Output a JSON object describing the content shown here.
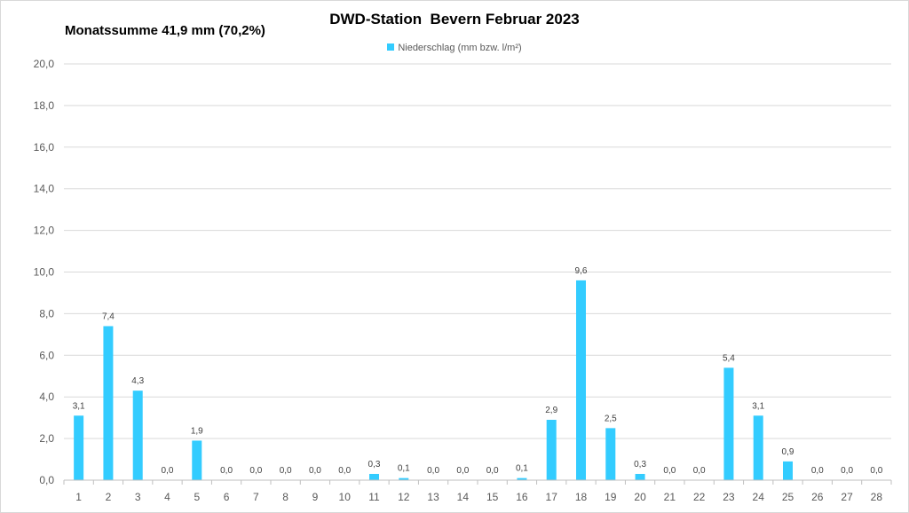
{
  "chart_data": {
    "type": "bar",
    "title": "DWD-Station  Bevern Februar 2023",
    "annotation": "Monatssumme 41,9 mm (70,2%)",
    "legend": "top-center",
    "grid": true,
    "ylim": [
      0,
      20
    ],
    "ytick_step": 2,
    "ytick_labels": [
      "0,0",
      "2,0",
      "4,0",
      "6,0",
      "8,0",
      "10,0",
      "12,0",
      "14,0",
      "16,0",
      "18,0",
      "20,0"
    ],
    "categories": [
      "1",
      "2",
      "3",
      "4",
      "5",
      "6",
      "7",
      "8",
      "9",
      "10",
      "11",
      "12",
      "13",
      "14",
      "15",
      "16",
      "17",
      "18",
      "19",
      "20",
      "21",
      "22",
      "23",
      "24",
      "25",
      "26",
      "27",
      "28"
    ],
    "series": [
      {
        "name": "Niederschlag (mm bzw. l/m²)",
        "color": "#33CCFF",
        "values": [
          3.1,
          7.4,
          4.3,
          0.0,
          1.9,
          0.0,
          0.0,
          0.0,
          0.0,
          0.0,
          0.3,
          0.1,
          0.0,
          0.0,
          0.0,
          0.1,
          2.9,
          9.6,
          2.5,
          0.3,
          0.0,
          0.0,
          5.4,
          3.1,
          0.9,
          0.0,
          0.0,
          0.0
        ],
        "labels": [
          "3,1",
          "7,4",
          "4,3",
          "0,0",
          "1,9",
          "0,0",
          "0,0",
          "0,0",
          "0,0",
          "0,0",
          "0,3",
          "0,1",
          "0,0",
          "0,0",
          "0,0",
          "0,1",
          "2,9",
          "9,6",
          "2,5",
          "0,3",
          "0,0",
          "0,0",
          "5,4",
          "3,1",
          "0,9",
          "0,0",
          "0,0",
          "0,0"
        ]
      }
    ]
  }
}
